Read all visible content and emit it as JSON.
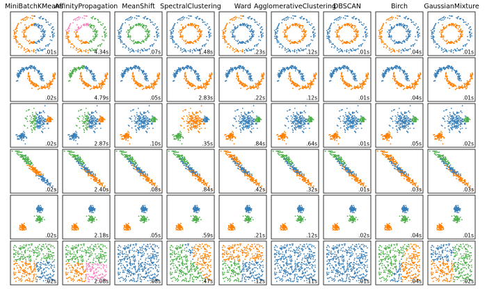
{
  "chart_data": {
    "type": "scatter",
    "title": "",
    "algorithms": [
      "MiniBatchKMeans",
      "AffinityPropagation",
      "MeanShift",
      "SpectralClustering",
      "Ward",
      "AgglomerativeClustering",
      "DBSCAN",
      "Birch",
      "GaussianMixture"
    ],
    "datasets": [
      "noisy_circles",
      "noisy_moons",
      "varied",
      "aniso",
      "blobs",
      "no_structure"
    ],
    "times": [
      [
        ".01s",
        "4.34s",
        ".07s",
        "1.48s",
        ".23s",
        ".12s",
        ".01s",
        ".04s",
        ".01s"
      ],
      [
        ".02s",
        "4.79s",
        ".05s",
        "2.83s",
        ".22s",
        ".12s",
        ".01s",
        ".04s",
        ".01s"
      ],
      [
        ".02s",
        "2.87s",
        ".10s",
        ".35s",
        ".84s",
        ".64s",
        ".01s",
        ".05s",
        ".02s"
      ],
      [
        ".02s",
        "2.40s",
        ".08s",
        ".84s",
        ".42s",
        ".32s",
        ".01s",
        ".03s",
        ".03s"
      ],
      [
        ".02s",
        "2.18s",
        ".05s",
        ".59s",
        ".21s",
        ".12s",
        ".02s",
        ".04s",
        ".01s"
      ],
      [
        ".02s",
        "2.08s",
        ".08s",
        ".47s",
        ".12s",
        ".11s",
        ".01s",
        ".04s",
        ".02s"
      ]
    ],
    "cluster_colors": [
      "#377eb8",
      "#ff7f00",
      "#4daf4a",
      "#f781bf"
    ],
    "noise_color": "#000000",
    "axes_ticks": false,
    "grid": false,
    "legend": "none"
  }
}
